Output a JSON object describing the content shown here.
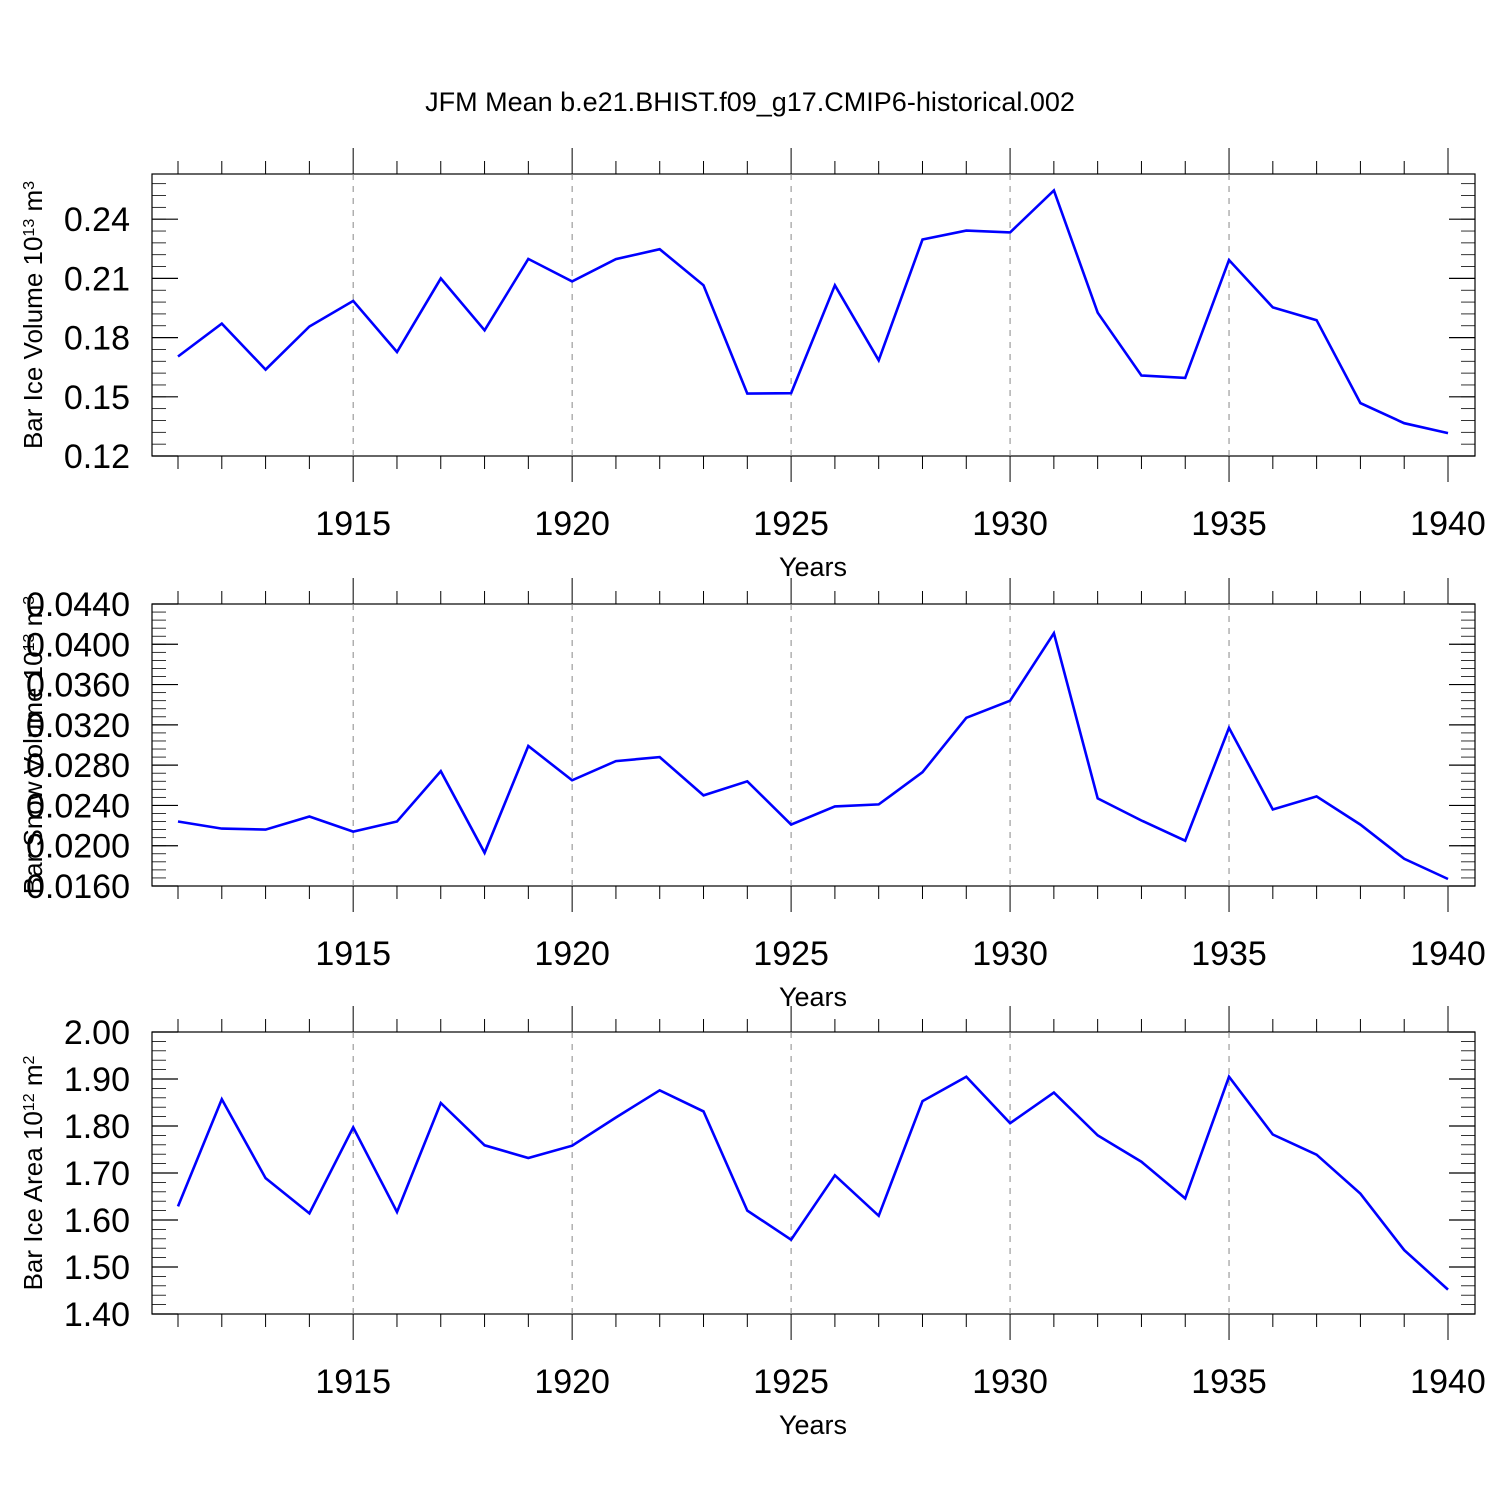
{
  "title": "JFM Mean b.e21.BHIST.f09_g17.CMIP6-historical.002",
  "colors": {
    "line": "#0000ff",
    "axis": "#000000",
    "grid": "#888888"
  },
  "chart_data": [
    {
      "type": "line",
      "ylabel_main": "Bar Ice Volume 10",
      "ylabel_exp": "13",
      "ylabel_unit": " m",
      "ylabel_unit_exp": "3",
      "xlabel": "Years",
      "xlim": [
        1911,
        1940
      ],
      "ylim": [
        0.12,
        0.2629
      ],
      "xticks": [
        1915,
        1920,
        1925,
        1930,
        1935,
        1940
      ],
      "yticks": [
        0.12,
        0.15,
        0.18,
        0.21,
        0.24
      ],
      "yticklabels": [
        "0.12",
        "0.15",
        "0.18",
        "0.21",
        "0.24"
      ],
      "yminor": 0.006,
      "series": [
        {
          "name": "Bar Ice Volume",
          "x": [
            1911,
            1912,
            1913,
            1914,
            1915,
            1916,
            1917,
            1918,
            1919,
            1920,
            1921,
            1922,
            1923,
            1924,
            1925,
            1926,
            1927,
            1928,
            1929,
            1930,
            1931,
            1932,
            1933,
            1934,
            1935,
            1936,
            1937,
            1938,
            1939,
            1940
          ],
          "values": [
            0.1704,
            0.1871,
            0.1638,
            0.1856,
            0.1986,
            0.1727,
            0.21,
            0.1837,
            0.2199,
            0.2085,
            0.2198,
            0.2248,
            0.2065,
            0.1516,
            0.1518,
            0.2065,
            0.1685,
            0.2297,
            0.2342,
            0.2333,
            0.2546,
            0.1926,
            0.1608,
            0.1596,
            0.2193,
            0.1953,
            0.1888,
            0.1468,
            0.1366,
            0.1316
          ]
        }
      ]
    },
    {
      "type": "line",
      "ylabel_main": "Bar Snow Volume 10",
      "ylabel_exp": "13",
      "ylabel_unit": " m",
      "ylabel_unit_exp": "3",
      "xlabel": "Years",
      "xlim": [
        1911,
        1940
      ],
      "ylim": [
        0.016,
        0.044
      ],
      "xticks": [
        1915,
        1920,
        1925,
        1930,
        1935,
        1940
      ],
      "yticks": [
        0.016,
        0.02,
        0.024,
        0.028,
        0.032,
        0.036,
        0.04,
        0.044
      ],
      "yticklabels": [
        "0.0160",
        "0.0200",
        "0.0240",
        "0.0280",
        "0.0320",
        "0.0360",
        "0.0400",
        "0.0440"
      ],
      "yminor": 0.0008,
      "series": [
        {
          "name": "Bar Snow Volume",
          "x": [
            1911,
            1912,
            1913,
            1914,
            1915,
            1916,
            1917,
            1918,
            1919,
            1920,
            1921,
            1922,
            1923,
            1924,
            1925,
            1926,
            1927,
            1928,
            1929,
            1930,
            1931,
            1932,
            1933,
            1934,
            1935,
            1936,
            1937,
            1938,
            1939,
            1940
          ],
          "values": [
            0.0224,
            0.0217,
            0.0216,
            0.0229,
            0.0214,
            0.0224,
            0.0274,
            0.0193,
            0.0299,
            0.0265,
            0.0284,
            0.0288,
            0.025,
            0.0264,
            0.0221,
            0.0239,
            0.0241,
            0.0273,
            0.0327,
            0.0344,
            0.0411,
            0.0247,
            0.0225,
            0.0205,
            0.0317,
            0.0236,
            0.0249,
            0.0221,
            0.0187,
            0.0167
          ]
        }
      ]
    },
    {
      "type": "line",
      "ylabel_main": "Bar Ice Area 10",
      "ylabel_exp": "12",
      "ylabel_unit": " m",
      "ylabel_unit_exp": "2",
      "xlabel": "Years",
      "xlim": [
        1911,
        1940
      ],
      "ylim": [
        1.4,
        2.0
      ],
      "xticks": [
        1915,
        1920,
        1925,
        1930,
        1935,
        1940
      ],
      "yticks": [
        1.4,
        1.5,
        1.6,
        1.7,
        1.8,
        1.9,
        2.0
      ],
      "yticklabels": [
        "1.40",
        "1.50",
        "1.60",
        "1.70",
        "1.80",
        "1.90",
        "2.00"
      ],
      "yminor": 0.02,
      "series": [
        {
          "name": "Bar Ice Area",
          "x": [
            1911,
            1912,
            1913,
            1914,
            1915,
            1916,
            1917,
            1918,
            1919,
            1920,
            1921,
            1922,
            1923,
            1924,
            1925,
            1926,
            1927,
            1928,
            1929,
            1930,
            1931,
            1932,
            1933,
            1934,
            1935,
            1936,
            1937,
            1938,
            1939,
            1940
          ],
          "values": [
            1.629,
            1.857,
            1.689,
            1.614,
            1.797,
            1.617,
            1.849,
            1.759,
            1.732,
            1.758,
            1.818,
            1.876,
            1.831,
            1.62,
            1.558,
            1.695,
            1.609,
            1.853,
            1.905,
            1.806,
            1.871,
            1.78,
            1.724,
            1.646,
            1.905,
            1.782,
            1.739,
            1.656,
            1.536,
            1.452
          ]
        }
      ]
    }
  ]
}
